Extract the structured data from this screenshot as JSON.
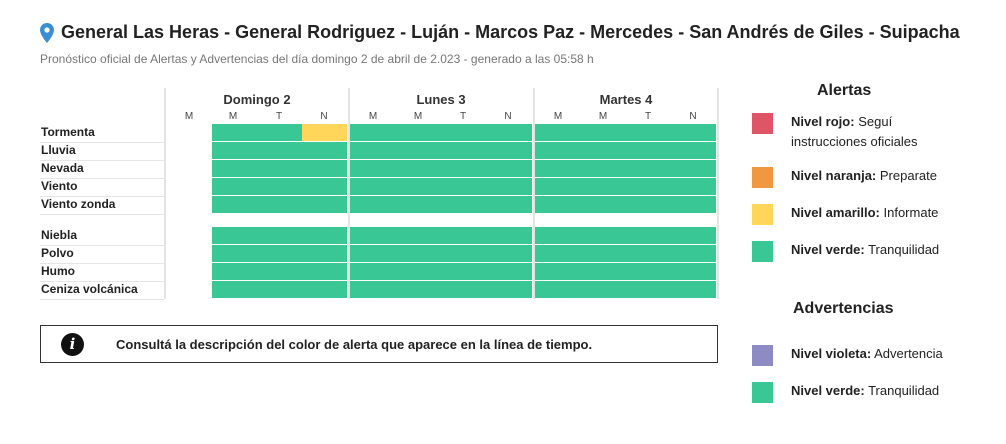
{
  "header": {
    "title": "General Las Heras - General Rodriguez - Luján - Marcos Paz - Mercedes - San Andrés de Giles - Suipacha",
    "subtitle": "Pronóstico oficial de Alertas y Advertencias del día domingo 2 de abril de 2.023 - generado a las 05:58 h"
  },
  "timeline": {
    "days": [
      {
        "label": "Domingo 2",
        "slots": [
          "M",
          "M",
          "T",
          "N"
        ]
      },
      {
        "label": "Lunes 3",
        "slots": [
          "M",
          "M",
          "T",
          "N"
        ]
      },
      {
        "label": "Martes 4",
        "slots": [
          "M",
          "M",
          "T",
          "N"
        ]
      }
    ],
    "rows": [
      {
        "label": "Tormenta",
        "levels": [
          "none",
          "verde",
          "verde",
          "amarillo",
          "verde",
          "verde",
          "verde",
          "verde",
          "verde",
          "verde",
          "verde",
          "verde"
        ]
      },
      {
        "label": "Lluvia",
        "levels": [
          "none",
          "verde",
          "verde",
          "verde",
          "verde",
          "verde",
          "verde",
          "verde",
          "verde",
          "verde",
          "verde",
          "verde"
        ]
      },
      {
        "label": "Nevada",
        "levels": [
          "none",
          "verde",
          "verde",
          "verde",
          "verde",
          "verde",
          "verde",
          "verde",
          "verde",
          "verde",
          "verde",
          "verde"
        ]
      },
      {
        "label": "Viento",
        "levels": [
          "none",
          "verde",
          "verde",
          "verde",
          "verde",
          "verde",
          "verde",
          "verde",
          "verde",
          "verde",
          "verde",
          "verde"
        ]
      },
      {
        "label": "Viento zonda",
        "levels": [
          "none",
          "verde",
          "verde",
          "verde",
          "verde",
          "verde",
          "verde",
          "verde",
          "verde",
          "verde",
          "verde",
          "verde"
        ]
      },
      {
        "label": "Niebla",
        "levels": [
          "none",
          "verde",
          "verde",
          "verde",
          "verde",
          "verde",
          "verde",
          "verde",
          "verde",
          "verde",
          "verde",
          "verde"
        ]
      },
      {
        "label": "Polvo",
        "levels": [
          "none",
          "verde",
          "verde",
          "verde",
          "verde",
          "verde",
          "verde",
          "verde",
          "verde",
          "verde",
          "verde",
          "verde"
        ]
      },
      {
        "label": "Humo",
        "levels": [
          "none",
          "verde",
          "verde",
          "verde",
          "verde",
          "verde",
          "verde",
          "verde",
          "verde",
          "verde",
          "verde",
          "verde"
        ]
      },
      {
        "label": "Ceniza volcánica",
        "levels": [
          "none",
          "verde",
          "verde",
          "verde",
          "verde",
          "verde",
          "verde",
          "verde",
          "verde",
          "verde",
          "verde",
          "verde"
        ]
      }
    ]
  },
  "info": {
    "icon": "info-icon",
    "text": "Consultá la descripción del color de alerta que aparece en la línea de tiempo."
  },
  "legend": {
    "alertas_title": "Alertas",
    "alertas": [
      {
        "name": "Nivel rojo:",
        "desc": "Seguí instrucciones oficiales",
        "color": "#dd5566"
      },
      {
        "name": "Nivel naranja:",
        "desc": "Preparate",
        "color": "#f09840"
      },
      {
        "name": "Nivel amarillo:",
        "desc": "Informate",
        "color": "#ffd55a"
      },
      {
        "name": "Nivel verde:",
        "desc": "Tranquilidad",
        "color": "#38c795"
      }
    ],
    "advertencias_title": "Advertencias",
    "advertencias": [
      {
        "name": "Nivel violeta:",
        "desc": "Advertencia",
        "color": "#8d8ac4"
      },
      {
        "name": "Nivel verde:",
        "desc": "Tranquilidad",
        "color": "#38c795"
      }
    ]
  },
  "colors": {
    "verde": "#38c795",
    "amarillo": "#ffd55a",
    "pin": "#3a8fd0"
  }
}
